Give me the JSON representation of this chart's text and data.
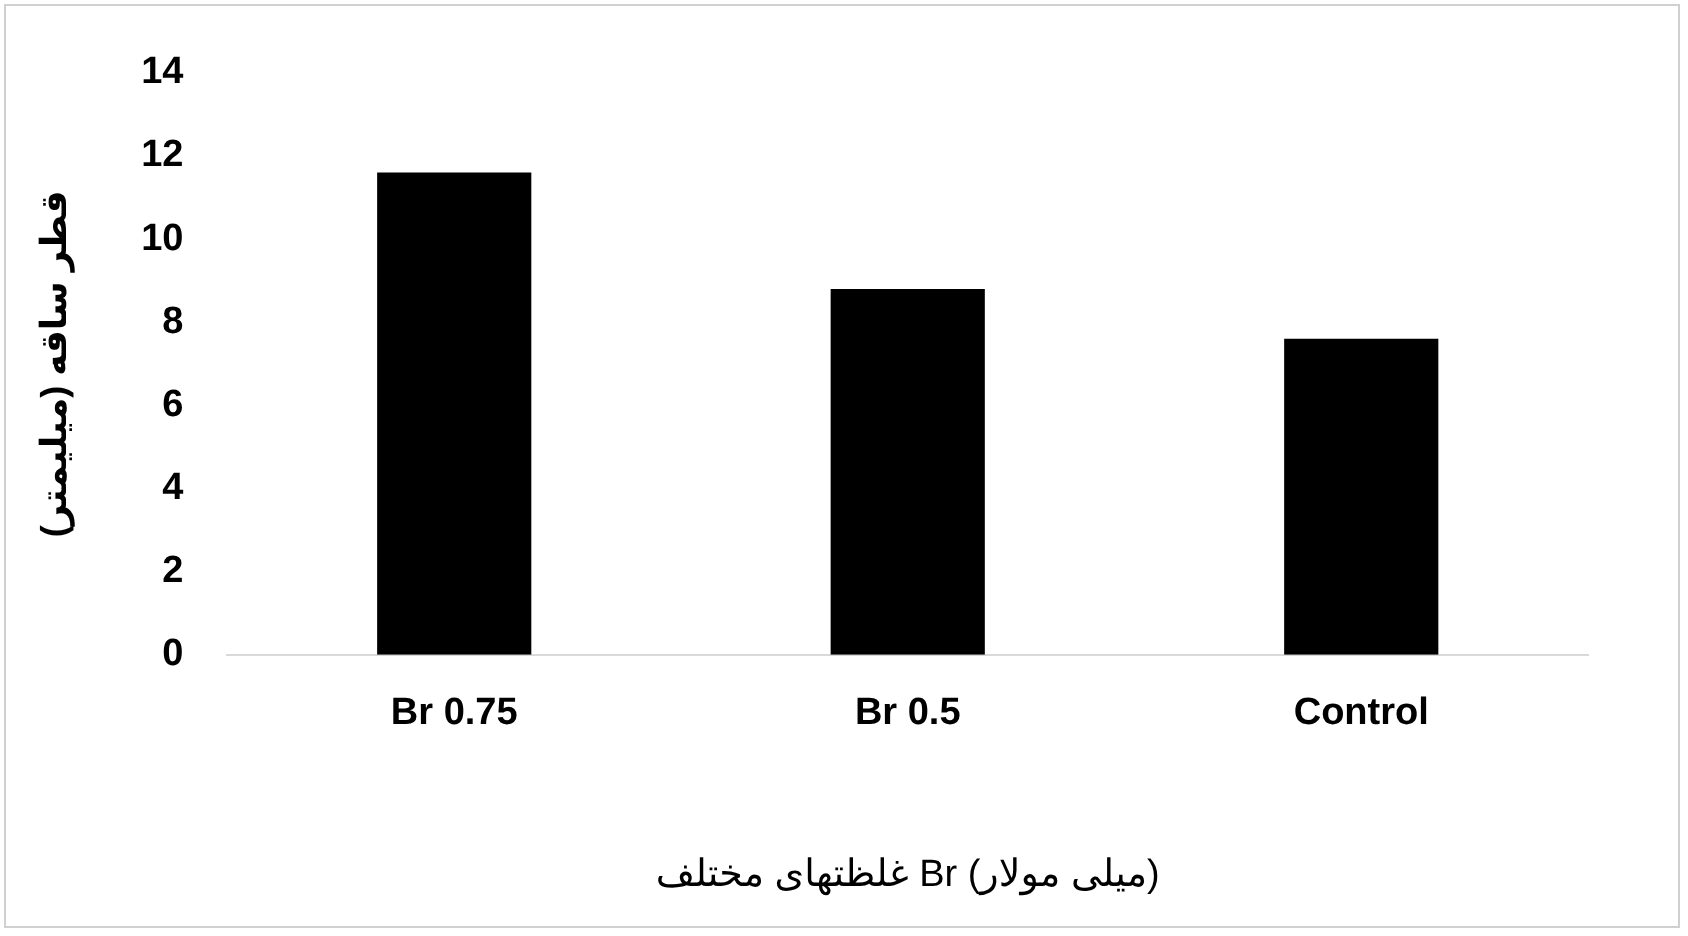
{
  "chart_data": {
    "type": "bar",
    "xlabel": "غلظتهای مختلف Br (میلی مولار)",
    "ylabel": "قطر ساقه (میلیمتر)",
    "categories": [
      "Br 0.75",
      "Br 0.5",
      "Control"
    ],
    "values": [
      11.6,
      8.8,
      7.6
    ],
    "color": "#000000",
    "ylim": [
      0,
      14
    ],
    "yticks": [
      0,
      2,
      4,
      6,
      8,
      10,
      12,
      14
    ],
    "grid": false,
    "legend": false
  }
}
